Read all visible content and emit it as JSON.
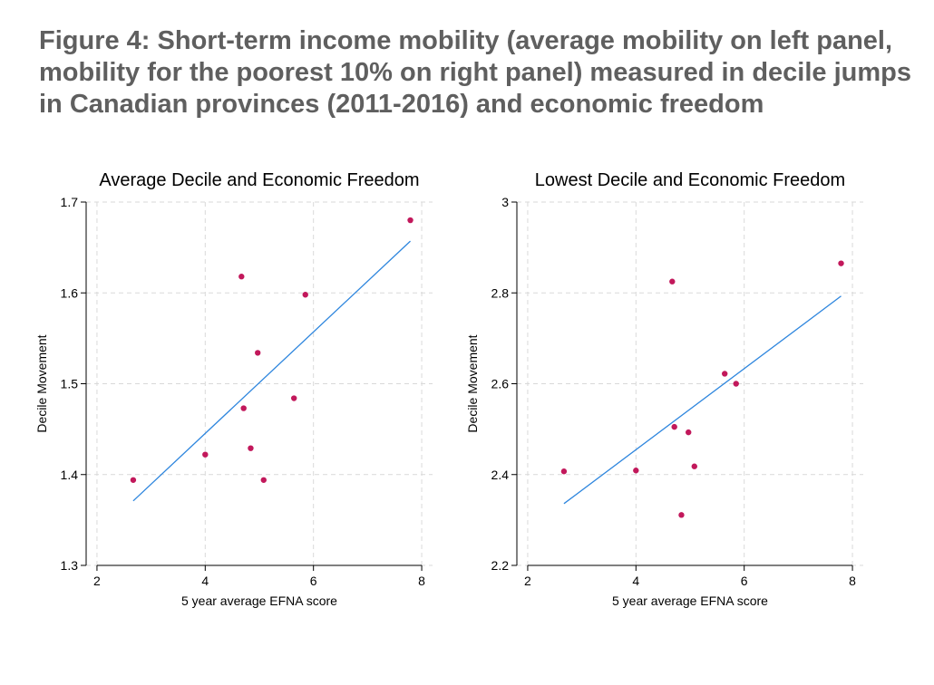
{
  "figure": {
    "title_lines": [
      "Figure 4: Short-term income mobility (average mobility on left panel,",
      "mobility for the poorest 10% on right panel) measured in decile jumps",
      "in Canadian provinces (2011-2016) and economic freedom"
    ]
  },
  "colors": {
    "points": "#c2185b",
    "fit_line": "#2e86de",
    "grid": "#d9d9d9",
    "axis": "#000000"
  },
  "chart_data": [
    {
      "type": "scatter",
      "title": "Average Decile and Economic Freedom",
      "xlabel": "5 year average EFNA score",
      "ylabel": "Decile Movement",
      "xlim": [
        1.8,
        8.2
      ],
      "ylim": [
        1.3,
        1.7
      ],
      "xticks": [
        2,
        4,
        6,
        8
      ],
      "yticks": [
        1.3,
        1.4,
        1.5,
        1.6,
        1.7
      ],
      "ytick_labels": [
        "1.3",
        "1.4",
        "1.5",
        "1.6",
        "1.7"
      ],
      "grid": true,
      "points": [
        {
          "x": 2.67,
          "y": 1.394
        },
        {
          "x": 4.0,
          "y": 1.422
        },
        {
          "x": 4.67,
          "y": 1.618
        },
        {
          "x": 4.71,
          "y": 1.473
        },
        {
          "x": 4.84,
          "y": 1.429
        },
        {
          "x": 4.97,
          "y": 1.534
        },
        {
          "x": 5.08,
          "y": 1.394
        },
        {
          "x": 5.64,
          "y": 1.484
        },
        {
          "x": 5.85,
          "y": 1.598
        },
        {
          "x": 7.79,
          "y": 1.68
        }
      ],
      "fit_line": {
        "x": [
          2.67,
          7.79
        ],
        "y": [
          1.371,
          1.657
        ]
      }
    },
    {
      "type": "scatter",
      "title": "Lowest Decile and Economic Freedom",
      "xlabel": "5 year average EFNA score",
      "ylabel": "Decile Movement",
      "xlim": [
        1.8,
        8.2
      ],
      "ylim": [
        2.2,
        3.0
      ],
      "xticks": [
        2,
        4,
        6,
        8
      ],
      "yticks": [
        2.2,
        2.4,
        2.6,
        2.8,
        3.0
      ],
      "ytick_labels": [
        "2.2",
        "2.4",
        "2.6",
        "2.8",
        "3"
      ],
      "grid": true,
      "points": [
        {
          "x": 2.67,
          "y": 2.407
        },
        {
          "x": 4.0,
          "y": 2.409
        },
        {
          "x": 4.67,
          "y": 2.825
        },
        {
          "x": 4.71,
          "y": 2.505
        },
        {
          "x": 4.84,
          "y": 2.311
        },
        {
          "x": 4.97,
          "y": 2.493
        },
        {
          "x": 5.08,
          "y": 2.418
        },
        {
          "x": 5.64,
          "y": 2.622
        },
        {
          "x": 5.85,
          "y": 2.6
        },
        {
          "x": 7.79,
          "y": 2.865
        }
      ],
      "fit_line": {
        "x": [
          2.67,
          7.79
        ],
        "y": [
          2.336,
          2.793
        ]
      }
    }
  ]
}
